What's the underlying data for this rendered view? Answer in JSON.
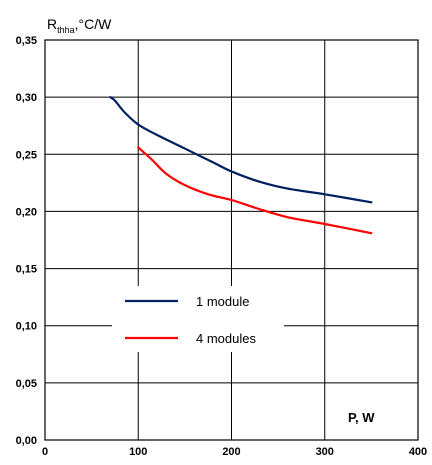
{
  "chart_data": {
    "type": "line",
    "ylabel_main": "R",
    "ylabel_sub": "thha",
    "ylabel_rest": ",°C/W",
    "xlabel": "P, W",
    "xlim": [
      0,
      400
    ],
    "ylim": [
      0,
      0.35
    ],
    "grid": true,
    "x_ticks": [
      0,
      100,
      200,
      300,
      400
    ],
    "x_tick_labels": [
      "0",
      "100",
      "200",
      "300",
      "400"
    ],
    "y_ticks": [
      0,
      0.05,
      0.1,
      0.15,
      0.2,
      0.25,
      0.3,
      0.35
    ],
    "y_tick_labels": [
      "0,00",
      "0,05",
      "0,10",
      "0,15",
      "0,20",
      "0,25",
      "0,30",
      "0,35"
    ],
    "legend_position": "center-left",
    "series": [
      {
        "name": "1 module",
        "color": "#002060",
        "x": [
          70,
          75,
          85,
          100,
          120,
          150,
          180,
          200,
          230,
          260,
          300,
          350
        ],
        "y": [
          0.3,
          0.297,
          0.287,
          0.276,
          0.267,
          0.255,
          0.243,
          0.235,
          0.226,
          0.22,
          0.215,
          0.208
        ]
      },
      {
        "name": "4 modules",
        "color": "#ff0000",
        "x": [
          100,
          115,
          130,
          150,
          175,
          200,
          230,
          260,
          300,
          350
        ],
        "y": [
          0.256,
          0.245,
          0.233,
          0.223,
          0.215,
          0.21,
          0.202,
          0.195,
          0.189,
          0.181
        ]
      }
    ]
  }
}
